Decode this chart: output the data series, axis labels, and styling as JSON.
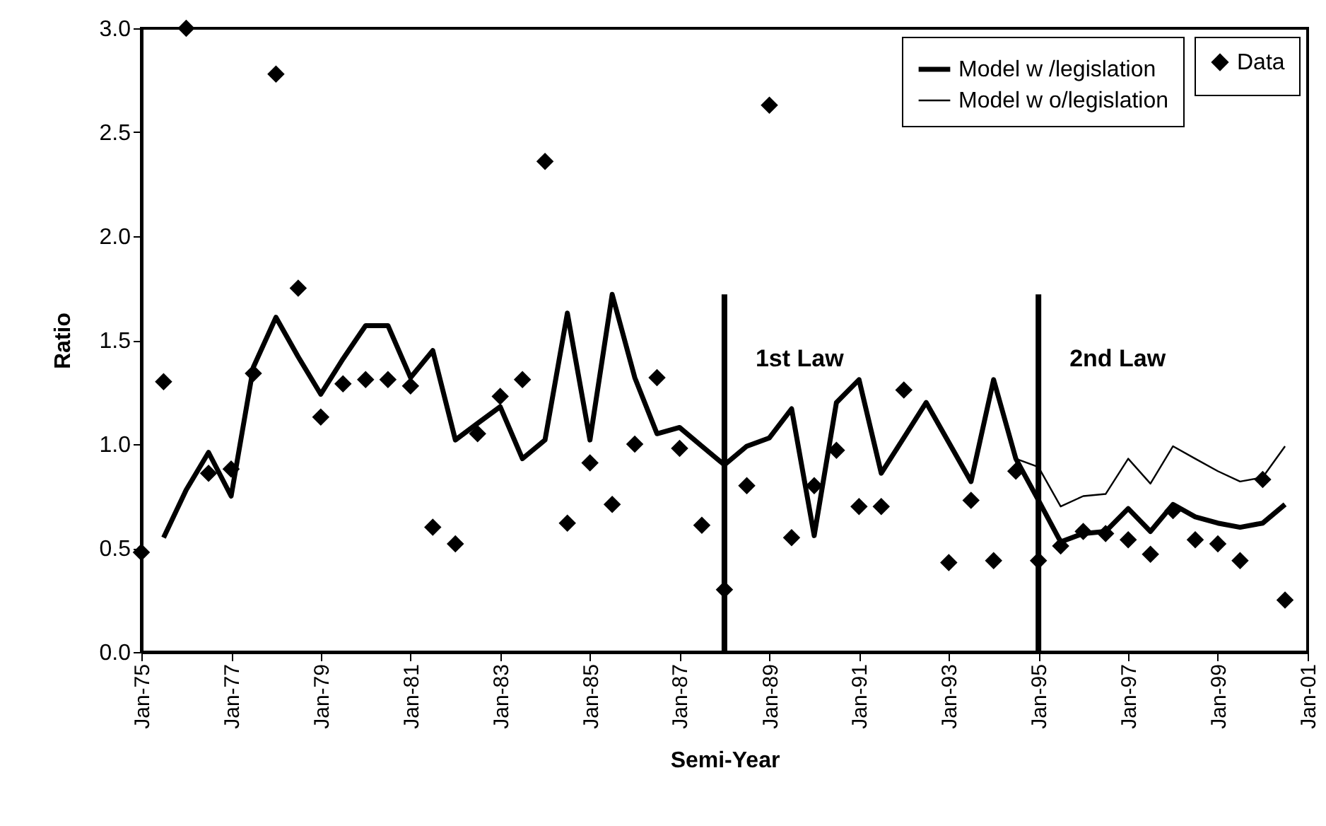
{
  "chart_data": {
    "type": "scatter",
    "xlabel": "Semi-Year",
    "ylabel": "Ratio",
    "xlim": [
      "1975-01",
      "2001-01"
    ],
    "xticks": [
      {
        "value": "1975-01",
        "label": "Jan-75"
      },
      {
        "value": "1977-01",
        "label": "Jan-77"
      },
      {
        "value": "1979-01",
        "label": "Jan-79"
      },
      {
        "value": "1981-01",
        "label": "Jan-81"
      },
      {
        "value": "1983-01",
        "label": "Jan-83"
      },
      {
        "value": "1985-01",
        "label": "Jan-85"
      },
      {
        "value": "1987-01",
        "label": "Jan-87"
      },
      {
        "value": "1989-01",
        "label": "Jan-89"
      },
      {
        "value": "1991-01",
        "label": "Jan-91"
      },
      {
        "value": "1993-01",
        "label": "Jan-93"
      },
      {
        "value": "1995-01",
        "label": "Jan-95"
      },
      {
        "value": "1997-01",
        "label": "Jan-97"
      },
      {
        "value": "1999-01",
        "label": "Jan-99"
      },
      {
        "value": "2001-01",
        "label": "Jan-01"
      }
    ],
    "ylim": [
      0,
      3
    ],
    "yticks": [
      {
        "value": 0,
        "label": "0.0"
      },
      {
        "value": 0.5,
        "label": "0.5"
      },
      {
        "value": 1,
        "label": "1.0"
      },
      {
        "value": 1.5,
        "label": "1.5"
      },
      {
        "value": 2,
        "label": "2.0"
      },
      {
        "value": 2.5,
        "label": "2.5"
      },
      {
        "value": 3,
        "label": "3.0"
      }
    ],
    "legend": "top right",
    "series": [
      {
        "name": "Data",
        "type": "scatter",
        "marker": "diamond",
        "color": "#000000",
        "x": [
          "1975-01",
          "1975-07",
          "1976-01",
          "1976-07",
          "1977-01",
          "1977-07",
          "1978-01",
          "1978-07",
          "1979-01",
          "1979-07",
          "1980-01",
          "1980-07",
          "1981-01",
          "1981-07",
          "1982-01",
          "1982-07",
          "1983-01",
          "1983-07",
          "1984-01",
          "1984-07",
          "1985-01",
          "1985-07",
          "1986-01",
          "1986-07",
          "1987-01",
          "1987-07",
          "1988-01",
          "1988-07",
          "1989-01",
          "1989-07",
          "1990-01",
          "1990-07",
          "1991-01",
          "1991-07",
          "1992-01",
          "1993-01",
          "1993-07",
          "1994-01",
          "1994-07",
          "1995-01",
          "1995-07",
          "1996-01",
          "1996-07",
          "1997-01",
          "1997-07",
          "1998-01",
          "1998-07",
          "1999-01",
          "1999-07",
          "2000-01",
          "2000-07"
        ],
        "values": [
          0.48,
          1.3,
          3.0,
          0.86,
          0.88,
          1.34,
          2.78,
          1.75,
          1.13,
          1.29,
          1.31,
          1.31,
          1.28,
          0.6,
          0.52,
          1.05,
          1.23,
          1.31,
          2.36,
          0.62,
          0.91,
          0.71,
          1.0,
          1.32,
          0.98,
          0.61,
          0.3,
          0.8,
          2.63,
          0.55,
          0.8,
          0.97,
          0.7,
          0.7,
          1.26,
          0.43,
          0.73,
          0.44,
          0.87,
          0.44,
          0.51,
          0.58,
          0.57,
          0.54,
          0.47,
          0.68,
          0.54,
          0.52,
          0.44,
          0.83,
          0.25
        ]
      },
      {
        "name": "Model w /legislation",
        "type": "line",
        "color": "#000000",
        "x": [
          "1975-07",
          "1976-01",
          "1976-07",
          "1977-01",
          "1977-07",
          "1978-01",
          "1978-07",
          "1979-01",
          "1979-07",
          "1980-01",
          "1980-07",
          "1981-01",
          "1981-07",
          "1982-01",
          "1982-07",
          "1983-01",
          "1983-07",
          "1984-01",
          "1984-07",
          "1985-01",
          "1985-07",
          "1986-01",
          "1986-07",
          "1987-01",
          "1987-07",
          "1988-01",
          "1988-07",
          "1989-01",
          "1989-07",
          "1990-01",
          "1990-07",
          "1991-01",
          "1991-07",
          "1992-07",
          "1993-07",
          "1994-01",
          "1994-07",
          "1995-01",
          "1995-07",
          "1996-01",
          "1996-07",
          "1997-01",
          "1997-07",
          "1998-01",
          "1998-07",
          "1999-01",
          "1999-07",
          "2000-01",
          "2000-07"
        ],
        "values": [
          0.55,
          0.78,
          0.96,
          0.75,
          1.37,
          1.61,
          1.42,
          1.24,
          1.41,
          1.57,
          1.57,
          1.32,
          1.45,
          1.02,
          1.1,
          1.18,
          0.93,
          1.02,
          1.63,
          1.02,
          1.72,
          1.32,
          1.05,
          1.08,
          0.99,
          0.9,
          0.99,
          1.03,
          1.17,
          0.56,
          1.2,
          1.31,
          0.86,
          1.2,
          0.82,
          1.31,
          0.93,
          0.73,
          0.53,
          0.57,
          0.58,
          0.69,
          0.58,
          0.71,
          0.65,
          0.62,
          0.6,
          0.62,
          0.71
        ]
      },
      {
        "name": "Model w o/legislation",
        "type": "line",
        "color": "#000000",
        "x": [
          "1994-07",
          "1995-01",
          "1995-07",
          "1996-01",
          "1996-07",
          "1997-01",
          "1997-07",
          "1998-01",
          "1998-07",
          "1999-01",
          "1999-07",
          "2000-01",
          "2000-07"
        ],
        "values": [
          0.93,
          0.89,
          0.7,
          0.75,
          0.76,
          0.93,
          0.81,
          0.99,
          0.93,
          0.87,
          0.82,
          0.84,
          0.99
        ]
      }
    ],
    "ref_lines": [
      {
        "axis": "x",
        "value": "1988-01",
        "label": "1st Law",
        "color": "#000000"
      },
      {
        "axis": "x",
        "value": "1995-01",
        "label": "2nd Law",
        "color": "#000000"
      }
    ]
  }
}
